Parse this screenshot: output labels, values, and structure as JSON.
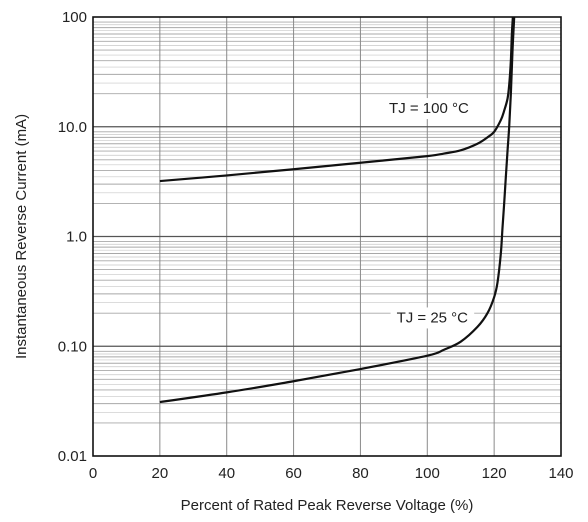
{
  "chart_data": {
    "type": "line",
    "title": "",
    "xlabel": "Percent of Rated Peak Reverse Voltage (%)",
    "ylabel": "Instantaneous Reverse Current (mA)",
    "xlim": [
      0,
      140
    ],
    "ylim": [
      0.01,
      100
    ],
    "yscale": "log",
    "grid": true,
    "x_ticks": [
      0,
      20,
      40,
      60,
      80,
      100,
      120,
      140
    ],
    "x_tick_labels": [
      "0",
      "20",
      "40",
      "60",
      "80",
      "100",
      "120",
      "140"
    ],
    "y_ticks": [
      0.01,
      0.1,
      1,
      10,
      100
    ],
    "y_tick_labels": [
      "0.01",
      "0.10",
      "1.0",
      "10.0",
      "100"
    ],
    "series": [
      {
        "name": "TJ = 100 °C",
        "color": "#111111",
        "x": [
          20,
          40,
          60,
          80,
          100,
          105,
          110,
          115,
          118,
          120,
          122,
          123,
          124,
          124.5,
          125,
          125.3,
          125.6
        ],
        "y": [
          3.2,
          3.6,
          4.1,
          4.7,
          5.4,
          5.7,
          6.1,
          7.0,
          8.0,
          9.0,
          11.5,
          14,
          18,
          24,
          40,
          70,
          100
        ]
      },
      {
        "name": "TJ = 25 °C",
        "color": "#111111",
        "x": [
          20,
          40,
          60,
          80,
          100,
          105,
          110,
          115,
          118,
          120,
          121,
          122,
          122.5,
          123,
          123.5,
          124,
          124.5,
          125,
          125.5,
          126
        ],
        "y": [
          0.031,
          0.038,
          0.048,
          0.062,
          0.082,
          0.093,
          0.11,
          0.15,
          0.2,
          0.28,
          0.38,
          0.7,
          1.2,
          2.0,
          3.5,
          6.0,
          10,
          20,
          50,
          100
        ]
      }
    ],
    "annotations": [
      {
        "text": "TJ = 100 °C",
        "series": 0
      },
      {
        "text": "TJ = 25 °C",
        "series": 1
      }
    ]
  }
}
